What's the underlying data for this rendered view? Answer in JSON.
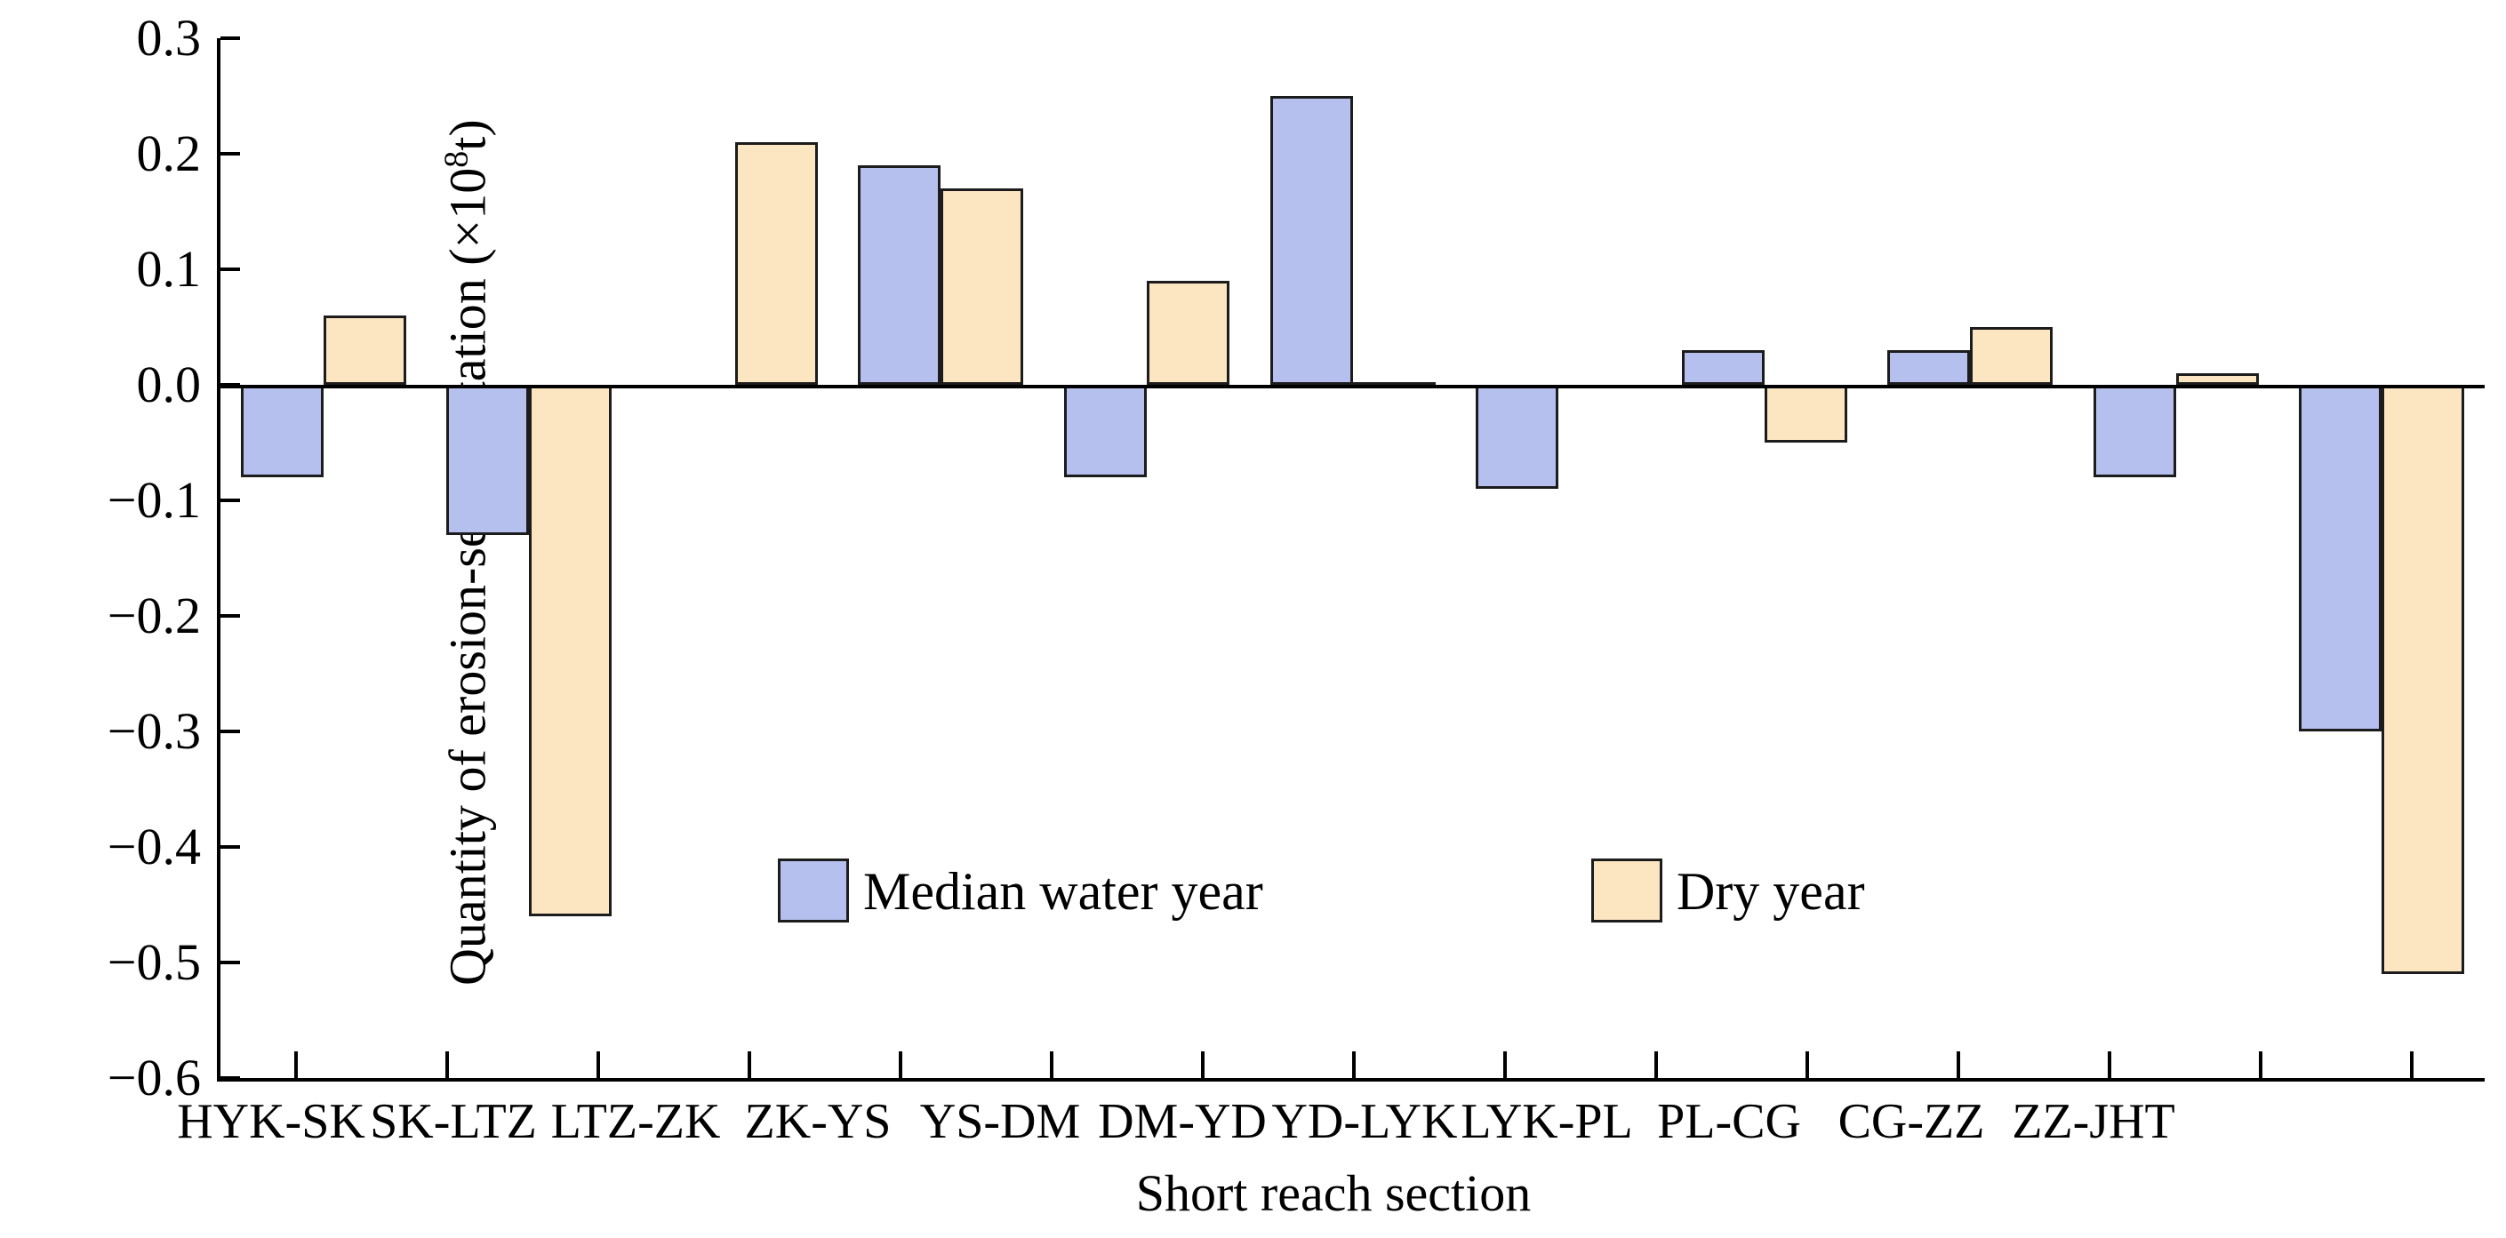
{
  "figure": {
    "xlabel": "Short reach section",
    "ylabel_prefix": "Quantity of erosion-sedimentation (×10",
    "ylabel_exponent": "8",
    "ylabel_suffix": "t)"
  },
  "chart_data": {
    "type": "bar",
    "title": "",
    "xlabel": "Short reach section",
    "ylabel": "Quantity of erosion-sedimentation (×10⁸t)",
    "categories": [
      "HYK-SK",
      "SK-LTZ",
      "LTZ-ZK",
      "ZK-YS",
      "YS-DM",
      "DM-YD",
      "YD-LYK",
      "LYK-PL",
      "PL-CG",
      "CG-ZZ",
      "ZZ-JHT"
    ],
    "series": [
      {
        "name": "Median water year",
        "color": "#b5c0ee",
        "values": [
          -0.08,
          -0.13,
          0,
          0.19,
          -0.08,
          0.25,
          -0.09,
          0.03,
          0.03,
          -0.08,
          -0.3
        ]
      },
      {
        "name": "Dry year",
        "color": "#fce5c1",
        "values": [
          0.06,
          -0.46,
          0.21,
          0.17,
          0.09,
          0.002,
          0,
          -0.05,
          0.05,
          0.01,
          -0.51
        ]
      }
    ],
    "ylim": [
      -0.6,
      0.3
    ],
    "ytick_step": 0.1,
    "ytick_labels": [
      "0.3",
      "0.2",
      "0.1",
      "0.0",
      "−0.1",
      "−0.2",
      "−0.3",
      "−0.4",
      "−0.5",
      "−0.6"
    ],
    "grid": false,
    "legend_position": "inside-center",
    "bar_outline": "#1c1c1c",
    "axis_color": "#000000"
  },
  "legend": {
    "items": [
      {
        "label": "Median water year",
        "color": "#b5c0ee"
      },
      {
        "label": "Dry year",
        "color": "#fce5c1"
      }
    ]
  }
}
